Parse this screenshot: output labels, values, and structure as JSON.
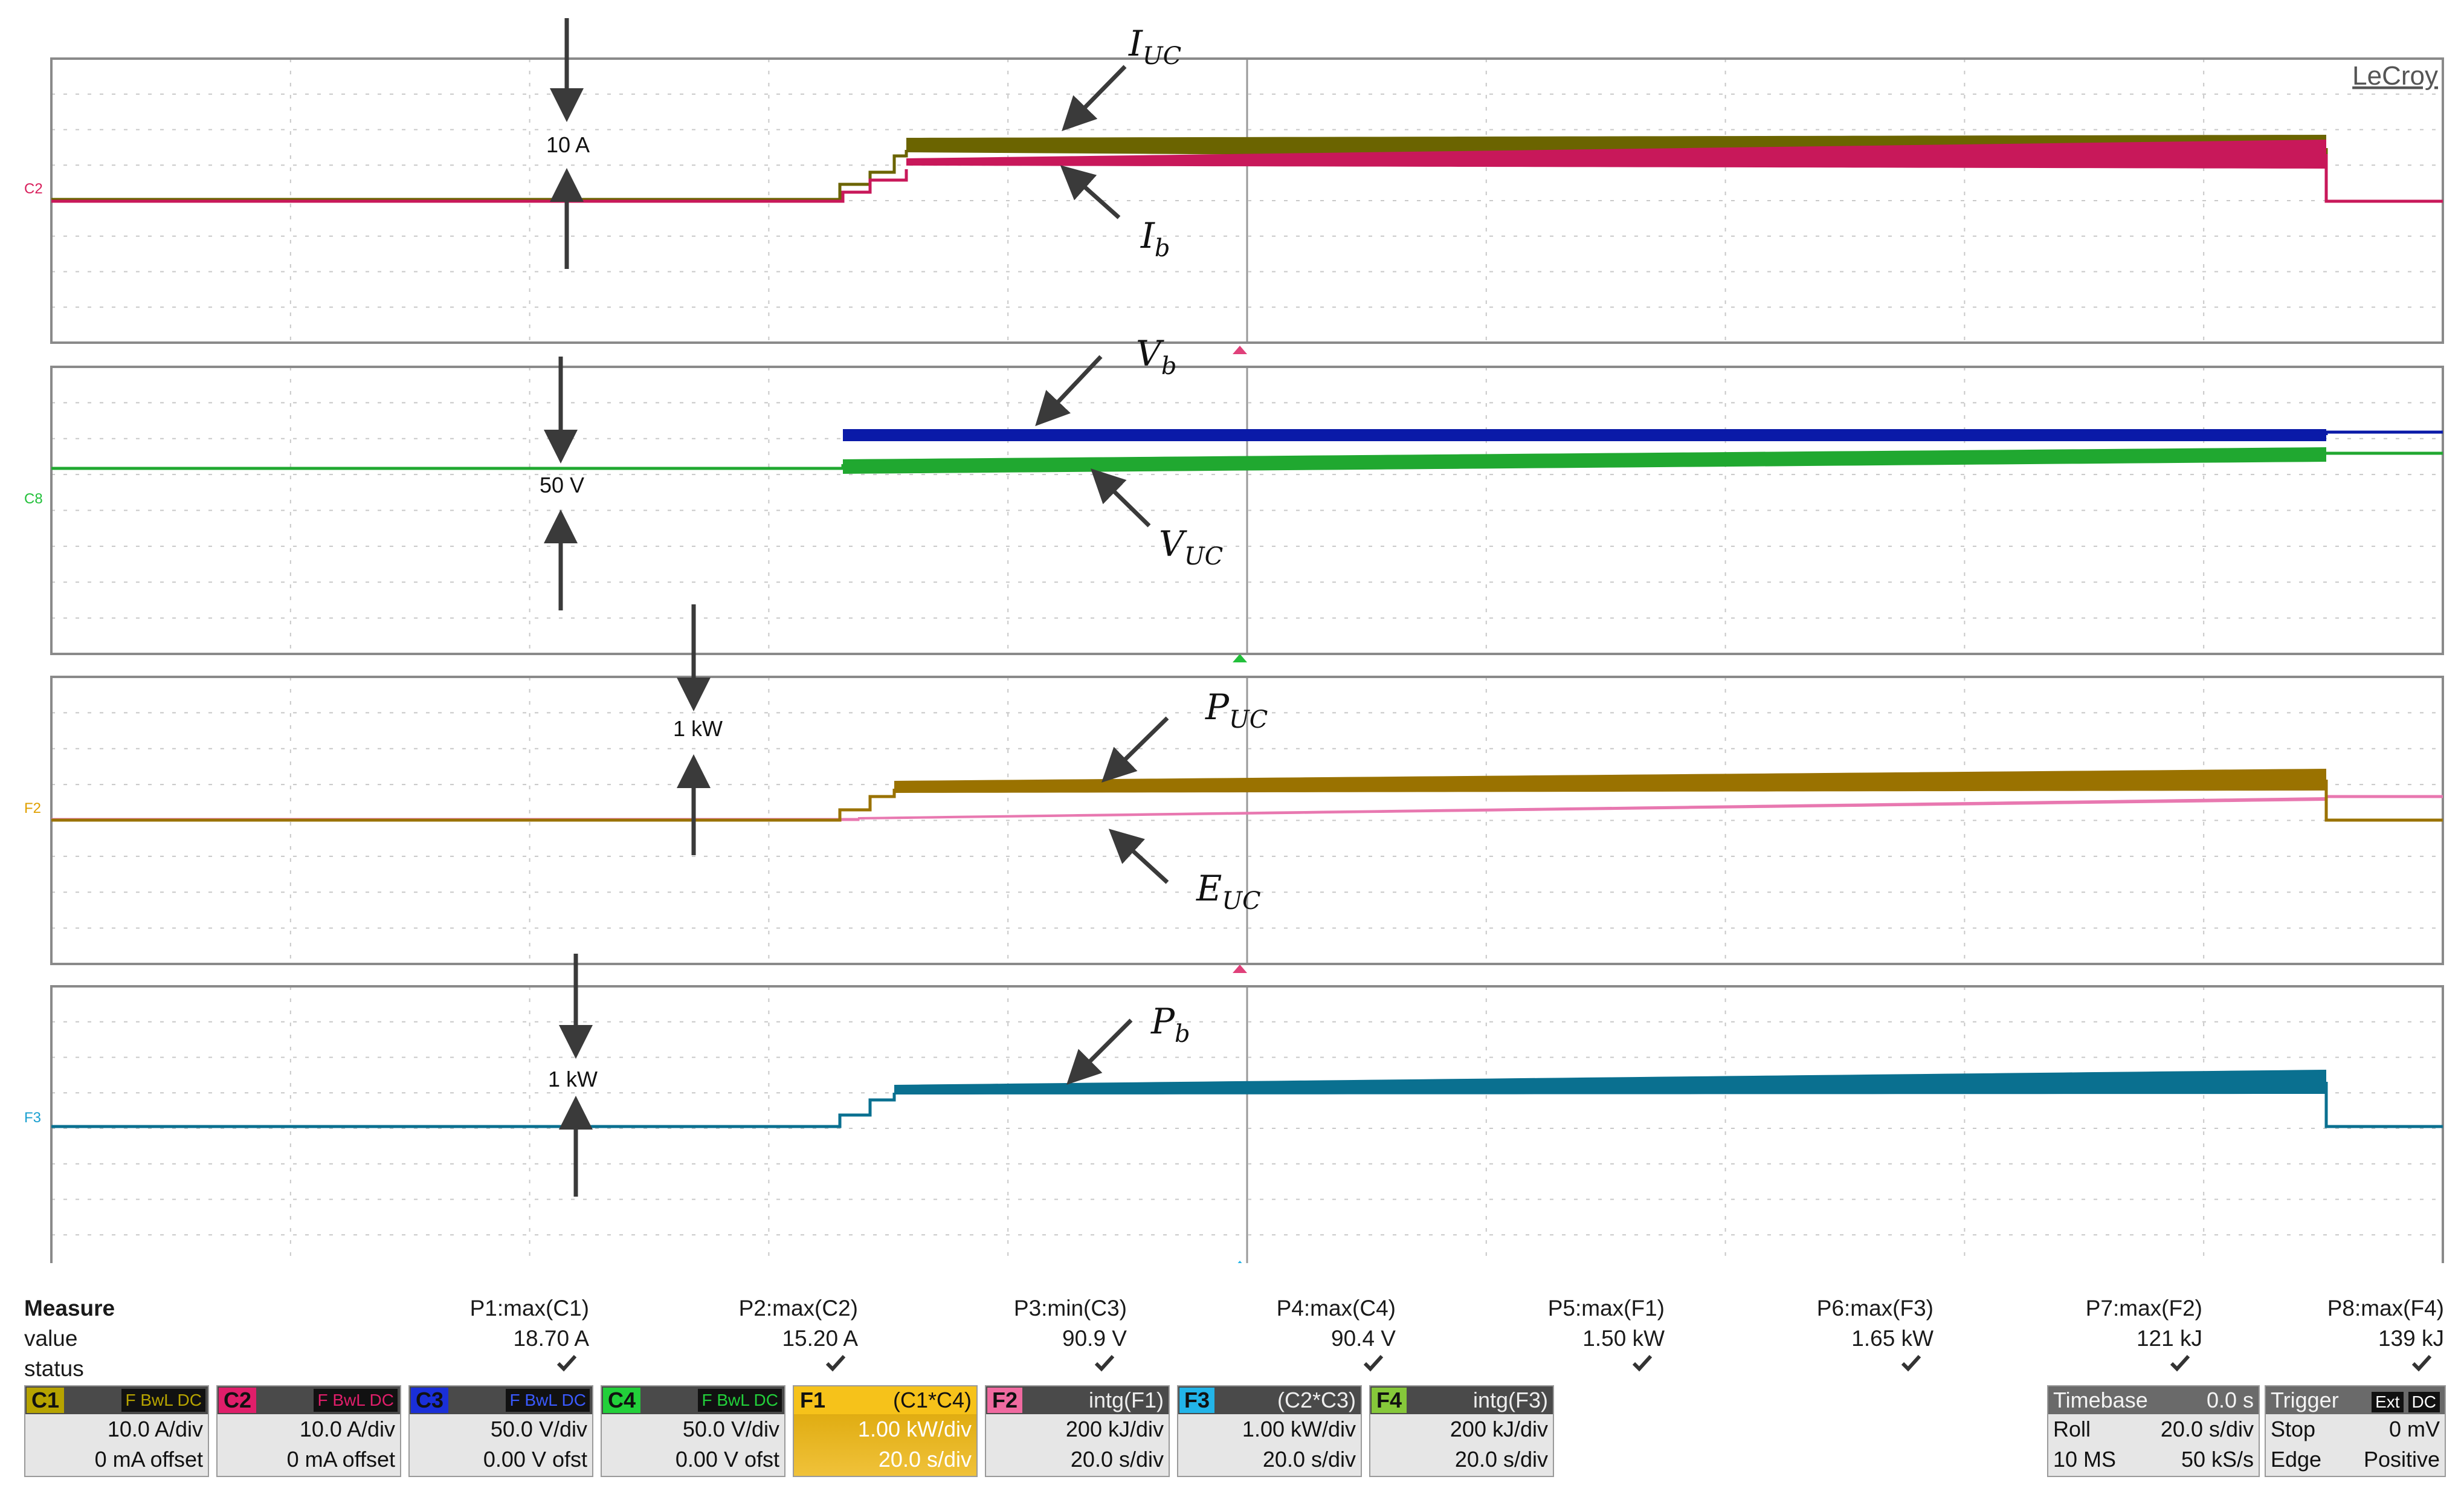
{
  "brand": "LeCroy",
  "chart_data": [
    {
      "type": "line",
      "channel_label": "C2",
      "series": [
        {
          "name": "I_UC"
        },
        {
          "name": "I_b"
        }
      ],
      "scale_annotation": "10 A"
    },
    {
      "type": "line",
      "channel_label": "C8",
      "series": [
        {
          "name": "V_b"
        },
        {
          "name": "V_UC"
        }
      ],
      "scale_annotation": "50 V"
    },
    {
      "type": "line",
      "channel_label": "F2",
      "series": [
        {
          "name": "P_UC"
        },
        {
          "name": "E_UC"
        }
      ],
      "scale_annotation": "1 kW"
    },
    {
      "type": "line",
      "channel_label": "F3",
      "series": [
        {
          "name": "P_b"
        }
      ],
      "scale_annotation": "1 kW"
    }
  ],
  "annotations": {
    "iuc": {
      "main": "I",
      "sub": "UC"
    },
    "ib": {
      "main": "I",
      "sub": "b"
    },
    "vb": {
      "main": "V",
      "sub": "b"
    },
    "vuc": {
      "main": "V",
      "sub": "UC"
    },
    "puc": {
      "main": "P",
      "sub": "UC"
    },
    "euc": {
      "main": "E",
      "sub": "UC"
    },
    "pb": {
      "main": "P",
      "sub": "b"
    }
  },
  "measure": {
    "title": "Measure",
    "row_value": "value",
    "row_status": "status",
    "params": [
      {
        "name": "P1:max(C1)",
        "value": "18.70 A"
      },
      {
        "name": "P2:max(C2)",
        "value": "15.20 A"
      },
      {
        "name": "P3:min(C3)",
        "value": "90.9 V"
      },
      {
        "name": "P4:max(C4)",
        "value": "90.4 V"
      },
      {
        "name": "P5:max(F1)",
        "value": "1.50 kW"
      },
      {
        "name": "P6:max(F3)",
        "value": "1.65 kW"
      },
      {
        "name": "P7:max(F2)",
        "value": "121 kJ"
      },
      {
        "name": "P8:max(F4)",
        "value": "139 kJ"
      }
    ]
  },
  "channels": [
    {
      "tag": "C1",
      "color": "#b6a300",
      "flags": "F BwL DC",
      "line1": "10.0 A/div",
      "line2": "0 mA offset"
    },
    {
      "tag": "C2",
      "color": "#e01e6a",
      "flags": "F BwL DC",
      "line1": "10.0 A/div",
      "line2": "0 mA offset"
    },
    {
      "tag": "C3",
      "color": "#1a2fd8",
      "flags": "F BwL DC",
      "line1": "50.0 V/div",
      "line2": "0.00 V ofst"
    },
    {
      "tag": "C4",
      "color": "#22d03a",
      "flags": "F BwL DC",
      "line1": "50.0 V/div",
      "line2": "0.00 V ofst"
    },
    {
      "tag": "F1",
      "color": "#f6c21a",
      "src": "(C1*C4)",
      "line1": "1.00 kW/div",
      "line2": "20.0 s/div"
    },
    {
      "tag": "F2",
      "color": "#f06aa0",
      "src": "intg(F1)",
      "line1": "200 kJ/div",
      "line2": "20.0 s/div"
    },
    {
      "tag": "F3",
      "color": "#22b4e8",
      "src": "(C2*C3)",
      "line1": "1.00 kW/div",
      "line2": "20.0 s/div"
    },
    {
      "tag": "F4",
      "color": "#86c83a",
      "src": "intg(F3)",
      "line1": "200 kJ/div",
      "line2": "20.0 s/div"
    }
  ],
  "timebase": {
    "title": "Timebase",
    "delay": "0.0 s",
    "mode": "Roll",
    "rate": "20.0 s/div",
    "samples": "10 MS",
    "srate": "50 kS/s"
  },
  "trigger": {
    "title": "Trigger",
    "src": "Ext",
    "coupling": "DC",
    "state": "Stop",
    "level": "0 mV",
    "type": "Edge",
    "slope": "Positive"
  }
}
